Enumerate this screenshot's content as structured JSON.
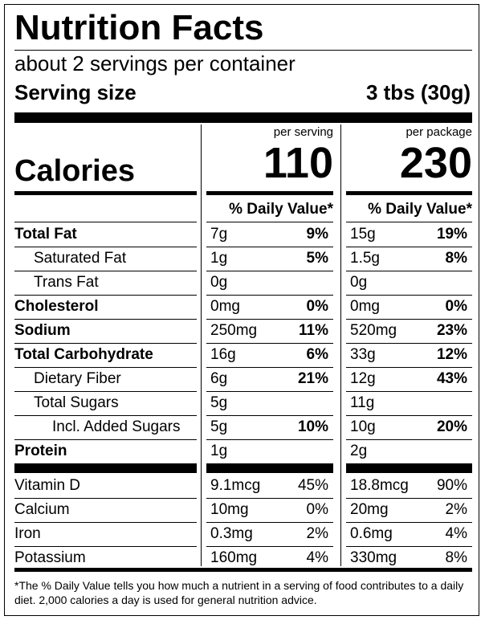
{
  "title": "Nutrition Facts",
  "servings": "about 2 servings per container",
  "serving_size": {
    "label": "Serving size",
    "value": "3 tbs (30g)"
  },
  "calories": {
    "label": "Calories",
    "columns": [
      {
        "header": "per serving",
        "value": "110",
        "dv_header": "% Daily Value*"
      },
      {
        "header": "per package",
        "value": "230",
        "dv_header": "% Daily Value*"
      }
    ]
  },
  "nutrients": [
    {
      "name": "Total Fat",
      "indent": 0,
      "bold": true,
      "values": [
        [
          "7g",
          "9%"
        ],
        [
          "15g",
          "19%"
        ]
      ]
    },
    {
      "name": "Saturated Fat",
      "indent": 1,
      "bold": false,
      "values": [
        [
          "1g",
          "5%"
        ],
        [
          "1.5g",
          "8%"
        ]
      ]
    },
    {
      "name": "Trans Fat",
      "indent": 1,
      "bold": false,
      "values": [
        [
          "0g",
          null
        ],
        [
          "0g",
          null
        ]
      ]
    },
    {
      "name": "Cholesterol",
      "indent": 0,
      "bold": true,
      "values": [
        [
          "0mg",
          "0%"
        ],
        [
          "0mg",
          "0%"
        ]
      ]
    },
    {
      "name": "Sodium",
      "indent": 0,
      "bold": true,
      "values": [
        [
          "250mg",
          "11%"
        ],
        [
          "520mg",
          "23%"
        ]
      ]
    },
    {
      "name": "Total Carbohydrate",
      "indent": 0,
      "bold": true,
      "values": [
        [
          "16g",
          "6%"
        ],
        [
          "33g",
          "12%"
        ]
      ]
    },
    {
      "name": "Dietary Fiber",
      "indent": 1,
      "bold": false,
      "values": [
        [
          "6g",
          "21%"
        ],
        [
          "12g",
          "43%"
        ]
      ]
    },
    {
      "name": "Total Sugars",
      "indent": 1,
      "bold": false,
      "values": [
        [
          "5g",
          null
        ],
        [
          "11g",
          null
        ]
      ]
    },
    {
      "name": "Incl. Added Sugars",
      "indent": 2,
      "bold": false,
      "values": [
        [
          "5g",
          "10%"
        ],
        [
          "10g",
          "20%"
        ]
      ]
    },
    {
      "name": "Protein",
      "indent": 0,
      "bold": true,
      "values": [
        [
          "1g",
          null
        ],
        [
          "2g",
          null
        ]
      ]
    }
  ],
  "vitamins": [
    {
      "name": "Vitamin D",
      "values": [
        [
          "9.1mcg",
          "45%"
        ],
        [
          "18.8mcg",
          "90%"
        ]
      ]
    },
    {
      "name": "Calcium",
      "values": [
        [
          "10mg",
          "0%"
        ],
        [
          "20mg",
          "2%"
        ]
      ]
    },
    {
      "name": "Iron",
      "values": [
        [
          "0.3mg",
          "2%"
        ],
        [
          "0.6mg",
          "4%"
        ]
      ]
    },
    {
      "name": "Potassium",
      "values": [
        [
          "160mg",
          "4%"
        ],
        [
          "330mg",
          "8%"
        ]
      ]
    }
  ],
  "footnote": "*The % Daily Value tells you how much a nutrient in a serving of food contributes to a daily diet. 2,000 calories a day is used for general nutrition advice."
}
